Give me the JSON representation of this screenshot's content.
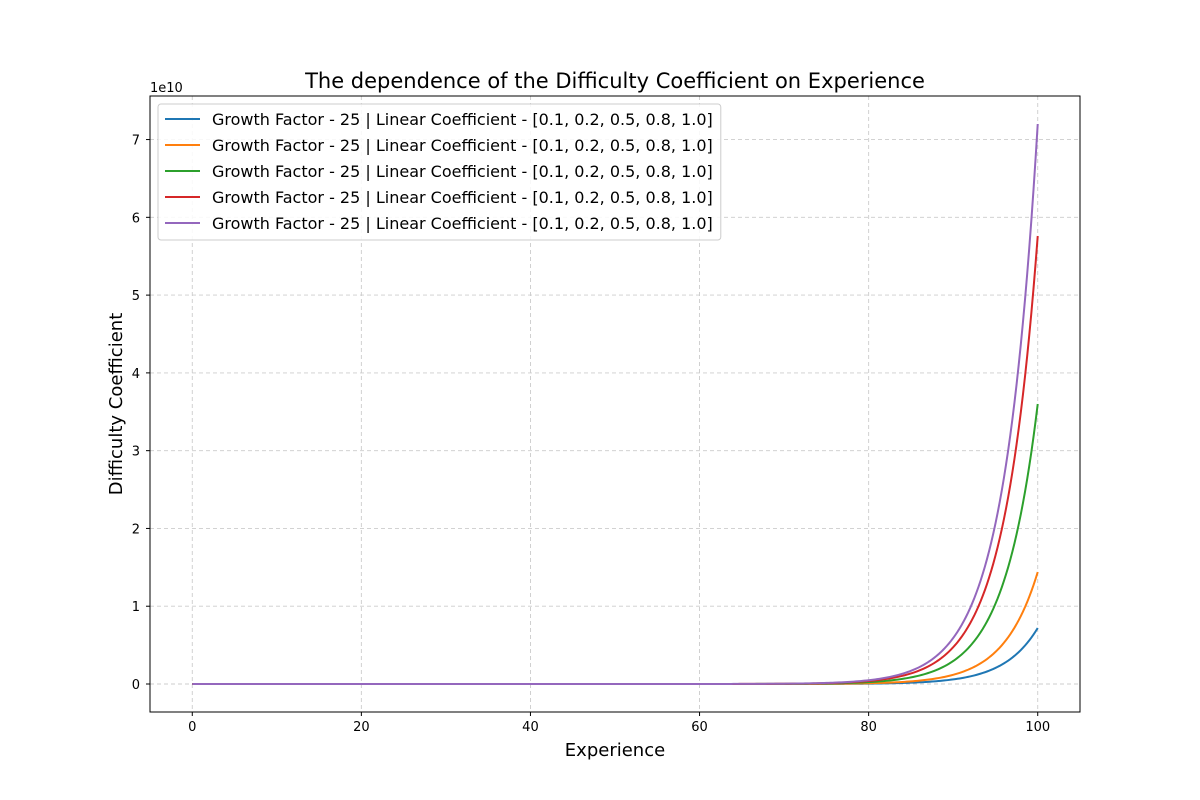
{
  "chart_data": {
    "type": "line",
    "title": "The dependence of the Difficulty Coefficient on Experience",
    "xlabel": "Experience",
    "ylabel": "Difficulty Coefficient",
    "y_offset_label": "1e10",
    "xlim": [
      -5,
      105
    ],
    "ylim": [
      -0.36,
      7.56
    ],
    "y_scale_factor": 10000000000.0,
    "x_ticks": [
      0,
      20,
      40,
      60,
      80,
      100
    ],
    "y_ticks": [
      0,
      1,
      2,
      3,
      4,
      5,
      6,
      7
    ],
    "grid": true,
    "legend_placement": "upper-left",
    "series": [
      {
        "name": "Growth Factor - 25 | Linear Coefficient - [0.1, 0.2, 0.5, 0.8, 1.0]",
        "color": "#1f77b4",
        "scale": 0.72,
        "rate": 0.25,
        "x_range": [
          0,
          100
        ]
      },
      {
        "name": "Growth Factor - 25 | Linear Coefficient - [0.1, 0.2, 0.5, 0.8, 1.0]",
        "color": "#ff7f0e",
        "scale": 1.44,
        "rate": 0.25,
        "x_range": [
          0,
          100
        ]
      },
      {
        "name": "Growth Factor - 25 | Linear Coefficient - [0.1, 0.2, 0.5, 0.8, 1.0]",
        "color": "#2ca02c",
        "scale": 3.6,
        "rate": 0.25,
        "x_range": [
          0,
          100
        ]
      },
      {
        "name": "Growth Factor - 25 | Linear Coefficient - [0.1, 0.2, 0.5, 0.8, 1.0]",
        "color": "#d62728",
        "scale": 5.76,
        "rate": 0.25,
        "x_range": [
          0,
          100
        ]
      },
      {
        "name": "Growth Factor - 25 | Linear Coefficient - [0.1, 0.2, 0.5, 0.8, 1.0]",
        "color": "#9467bd",
        "scale": 7.2,
        "rate": 0.25,
        "x_range": [
          0,
          100
        ]
      }
    ]
  }
}
